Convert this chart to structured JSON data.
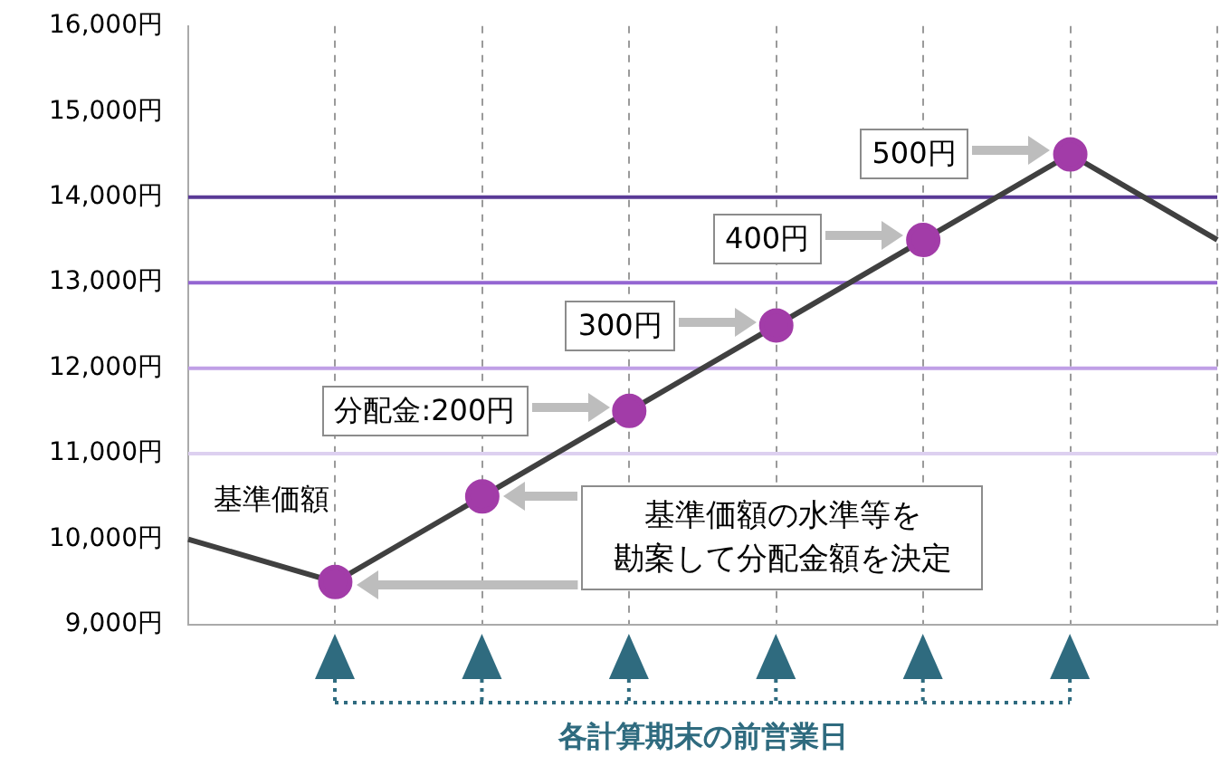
{
  "chart_data": {
    "type": "line",
    "xlabel": "各計算期末の前営業日",
    "categories": [
      null,
      null,
      null,
      null,
      null,
      null,
      null,
      null
    ],
    "series": [
      {
        "name": "基準価額",
        "color": "#404040",
        "colors": [
          null,
          "#a23ca8",
          "#a23ca8",
          "#a23ca8",
          "#a23ca8",
          "#a23ca8",
          "#a23ca8",
          null
        ],
        "values": [
          10000,
          9500,
          10500,
          11500,
          12500,
          13500,
          14500,
          13500
        ]
      }
    ],
    "ylim": [
      9000,
      16000
    ],
    "yticks": [
      {
        "value": 9000,
        "label": "9,000円"
      },
      {
        "value": 10000,
        "label": "10,000円"
      },
      {
        "value": 11000,
        "label": "11,000円"
      },
      {
        "value": 12000,
        "label": "12,000円"
      },
      {
        "value": 13000,
        "label": "13,000円"
      },
      {
        "value": 14000,
        "label": "14,000円"
      },
      {
        "value": 15000,
        "label": "15,000円"
      },
      {
        "value": 16000,
        "label": "16,000円"
      }
    ],
    "ref_lines": [
      {
        "axis": "y",
        "value": 11000,
        "color": "#ddd0f0"
      },
      {
        "axis": "y",
        "value": 12000,
        "color": "#c0a0e6"
      },
      {
        "axis": "y",
        "value": 13000,
        "color": "#9466d2"
      },
      {
        "axis": "y",
        "value": 14000,
        "color": "#5a3a96"
      }
    ],
    "annotations": [
      "分配金:200円",
      "300円",
      "400円",
      "500円",
      "基準価額の水準等を勘案して分配金額を決定"
    ],
    "grid": "x",
    "legend": false,
    "tick_labels": "y",
    "marker": "circle",
    "line_style": "solid"
  }
}
